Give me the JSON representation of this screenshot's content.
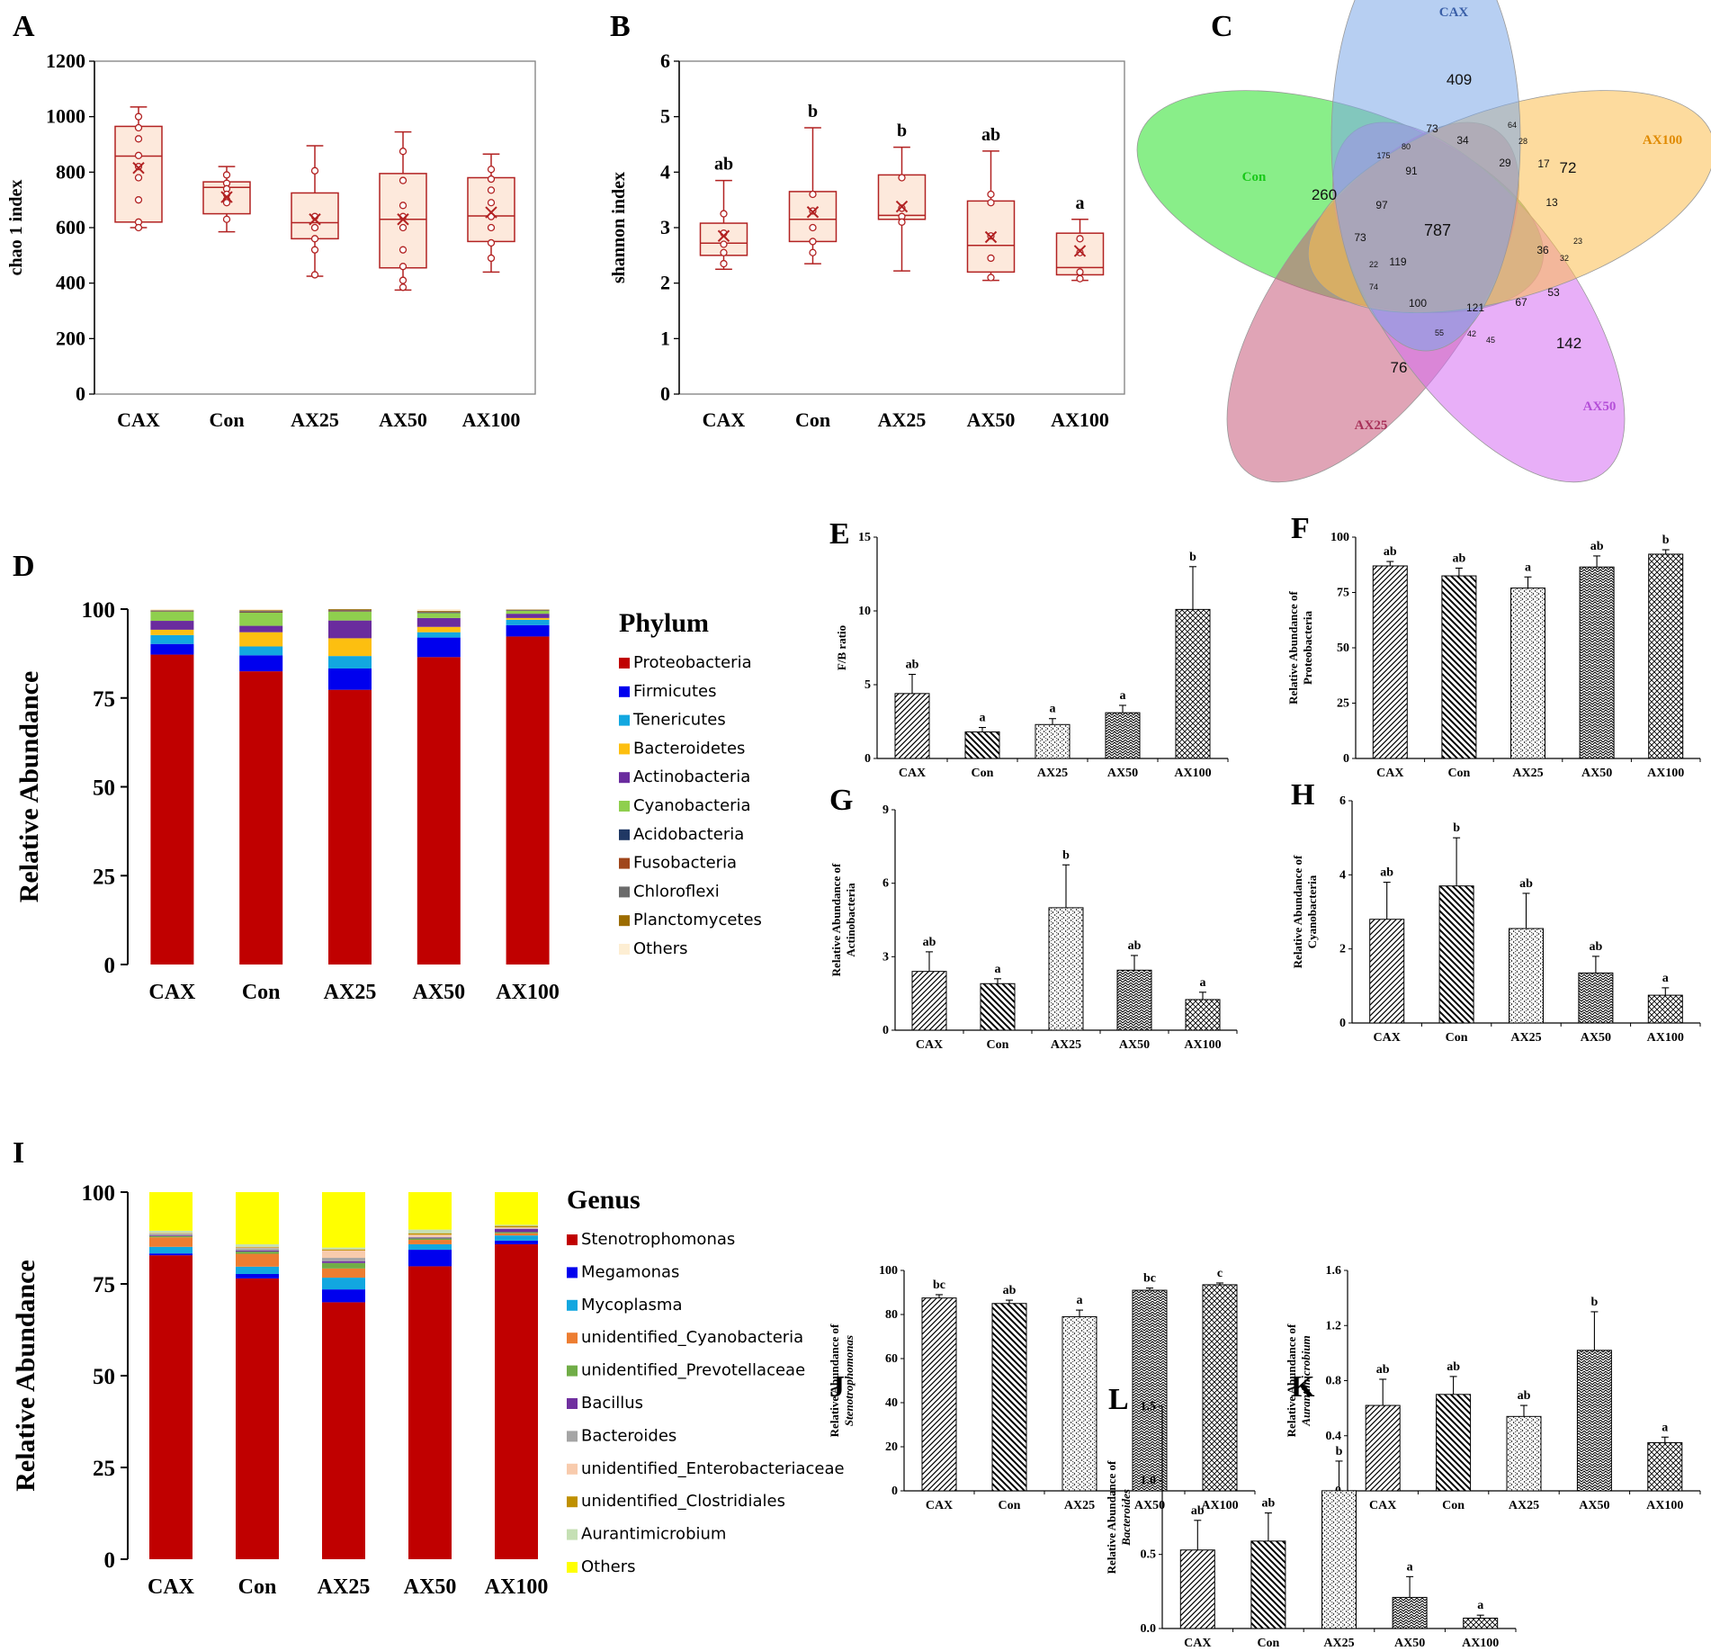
{
  "chart_data": [
    {
      "panel": "A",
      "type": "box",
      "ylabel": "chao 1 index",
      "ylim": [
        0,
        1200
      ],
      "yticks": [
        0,
        200,
        400,
        600,
        800,
        1000,
        1200
      ],
      "categories": [
        "CAX",
        "Con",
        "AX25",
        "AX50",
        "AX100"
      ],
      "boxes": [
        {
          "min": 600,
          "q1": 620,
          "median": 858,
          "q3": 965,
          "max": 1035,
          "mean": 815,
          "points": [
            1000,
            960,
            920,
            860,
            820,
            780,
            700,
            620,
            600
          ]
        },
        {
          "min": 585,
          "q1": 650,
          "median": 745,
          "q3": 765,
          "max": 820,
          "mean": 710,
          "points": [
            790,
            760,
            740,
            720,
            700,
            690,
            630
          ]
        },
        {
          "min": 425,
          "q1": 560,
          "median": 618,
          "q3": 725,
          "max": 895,
          "mean": 630,
          "points": [
            805,
            640,
            600,
            560,
            520,
            430
          ]
        },
        {
          "min": 375,
          "q1": 455,
          "median": 630,
          "q3": 795,
          "max": 945,
          "mean": 630,
          "points": [
            875,
            770,
            680,
            640,
            600,
            520,
            460,
            410,
            385
          ]
        },
        {
          "min": 440,
          "q1": 550,
          "median": 642,
          "q3": 780,
          "max": 865,
          "mean": 655,
          "points": [
            810,
            775,
            735,
            690,
            640,
            600,
            545,
            490
          ]
        }
      ]
    },
    {
      "panel": "B",
      "type": "box",
      "ylabel": "shannon index",
      "ylim": [
        0,
        6
      ],
      "yticks": [
        0,
        1,
        2,
        3,
        4,
        5,
        6
      ],
      "categories": [
        "CAX",
        "Con",
        "AX25",
        "AX50",
        "AX100"
      ],
      "letters": [
        "ab",
        "b",
        "b",
        "ab",
        "a"
      ],
      "boxes": [
        {
          "min": 2.25,
          "q1": 2.5,
          "median": 2.72,
          "q3": 3.08,
          "max": 3.85,
          "mean": 2.85,
          "points": [
            3.25,
            2.9,
            2.7,
            2.55,
            2.35
          ]
        },
        {
          "min": 2.35,
          "q1": 2.75,
          "median": 3.15,
          "q3": 3.65,
          "max": 4.8,
          "mean": 3.28,
          "points": [
            3.6,
            3.3,
            3.0,
            2.75,
            2.55
          ]
        },
        {
          "min": 2.22,
          "q1": 3.15,
          "median": 3.22,
          "q3": 3.95,
          "max": 4.45,
          "mean": 3.38,
          "points": [
            3.9,
            3.35,
            3.2,
            3.1
          ]
        },
        {
          "min": 2.05,
          "q1": 2.2,
          "median": 2.68,
          "q3": 3.48,
          "max": 4.38,
          "mean": 2.83,
          "points": [
            3.6,
            3.45,
            2.85,
            2.45,
            2.1
          ]
        },
        {
          "min": 2.05,
          "q1": 2.15,
          "median": 2.28,
          "q3": 2.9,
          "max": 3.15,
          "mean": 2.58,
          "points": [
            2.8,
            2.55,
            2.2,
            2.08
          ]
        }
      ]
    },
    {
      "panel": "C",
      "type": "venn",
      "sets": [
        "CAX",
        "AX100",
        "AX50",
        "AX25",
        "Con"
      ],
      "counts": {
        "CAX_only": "409",
        "AX100_only": "72",
        "AX50_only": "142",
        "AX25_only": "76",
        "Con_only": "260",
        "core": "787",
        "r1": "73",
        "r2": "64",
        "r3": "34",
        "r4": "29",
        "r5": "17",
        "r6": "28",
        "r7": "80",
        "r8": "175",
        "r9": "91",
        "r10": "13",
        "r11": "97",
        "r12": "73",
        "r13": "36",
        "r14": "23",
        "r15": "32",
        "r16": "22",
        "r17": "119",
        "r18": "74",
        "r19": "100",
        "r20": "121",
        "r21": "67",
        "r22": "53",
        "r23": "55",
        "r24": "42",
        "r25": "45"
      }
    },
    {
      "panel": "D",
      "type": "stacked-bar",
      "ylabel": "Relative Abundance",
      "ylim": [
        0,
        100
      ],
      "yticks": [
        0,
        25,
        50,
        75,
        100
      ],
      "categories": [
        "CAX",
        "Con",
        "AX25",
        "AX50",
        "AX100"
      ],
      "legend_title": "Phylum",
      "series": [
        {
          "name": "Proteobacteria",
          "color": "#c00000",
          "values": [
            87.2,
            82.5,
            77.3,
            86.5,
            92.3
          ]
        },
        {
          "name": "Firmicutes",
          "color": "#0000ee",
          "values": [
            3.0,
            4.5,
            6.0,
            5.5,
            3.2
          ]
        },
        {
          "name": "Tenericutes",
          "color": "#12a7e0",
          "values": [
            2.5,
            2.5,
            3.5,
            1.5,
            1.5
          ]
        },
        {
          "name": "Bacteroidetes",
          "color": "#fdbf10",
          "values": [
            1.5,
            4.0,
            5.0,
            1.5,
            0.5
          ]
        },
        {
          "name": "Actinobacteria",
          "color": "#6a2c9e",
          "values": [
            2.5,
            1.8,
            5.0,
            2.5,
            1.2
          ]
        },
        {
          "name": "Cyanobacteria",
          "color": "#8fcf4e",
          "values": [
            2.6,
            3.7,
            2.5,
            1.4,
            0.8
          ]
        },
        {
          "name": "Acidobacteria",
          "color": "#203864",
          "values": [
            0.1,
            0.1,
            0.1,
            0.1,
            0.1
          ]
        },
        {
          "name": "Fusobacteria",
          "color": "#a0461b",
          "values": [
            0.1,
            0.2,
            0.2,
            0.1,
            0.1
          ]
        },
        {
          "name": "Chloroflexi",
          "color": "#6b6b6b",
          "values": [
            0.1,
            0.2,
            0.2,
            0.2,
            0.1
          ]
        },
        {
          "name": "Planctomycetes",
          "color": "#9c6c00",
          "values": [
            0.1,
            0.2,
            0.2,
            0.2,
            0.1
          ]
        },
        {
          "name": "Others",
          "color": "#fdeed3",
          "values": [
            0.3,
            0.3,
            0.0,
            0.5,
            0.1
          ]
        }
      ]
    },
    {
      "panel": "E",
      "type": "bar",
      "ylabel": "F/B ratio",
      "ylim": [
        0,
        15
      ],
      "yticks": [
        0,
        5,
        10,
        15
      ],
      "categories": [
        "CAX",
        "Con",
        "AX25",
        "AX50",
        "AX100"
      ],
      "values": [
        4.4,
        1.8,
        2.3,
        3.1,
        10.1
      ],
      "errors": [
        1.3,
        0.3,
        0.4,
        0.5,
        2.9
      ],
      "letters": [
        "ab",
        "a",
        "a",
        "a",
        "b"
      ]
    },
    {
      "panel": "F",
      "type": "bar",
      "ylabel": [
        "Relative Abundance of",
        "Proteobacteria"
      ],
      "ylim": [
        0,
        100
      ],
      "yticks": [
        0,
        25,
        50,
        75,
        100
      ],
      "categories": [
        "CAX",
        "Con",
        "AX25",
        "AX50",
        "AX100"
      ],
      "values": [
        87,
        82.5,
        77,
        86.5,
        92.3
      ],
      "errors": [
        2,
        3.5,
        5,
        5,
        2
      ],
      "letters": [
        "ab",
        "ab",
        "a",
        "ab",
        "b"
      ]
    },
    {
      "panel": "G",
      "type": "bar",
      "ylabel": [
        "Relative Abundance of",
        "Actinobacteria"
      ],
      "ylim": [
        0,
        9
      ],
      "yticks": [
        0,
        3,
        6,
        9
      ],
      "categories": [
        "CAX",
        "Con",
        "AX25",
        "AX50",
        "AX100"
      ],
      "values": [
        2.4,
        1.9,
        5.0,
        2.45,
        1.25
      ],
      "errors": [
        0.8,
        0.2,
        1.75,
        0.6,
        0.3
      ],
      "letters": [
        "ab",
        "a",
        "b",
        "ab",
        "a"
      ]
    },
    {
      "panel": "H",
      "type": "bar",
      "ylabel": [
        "Relative Abundance of",
        "Cyanobacteria"
      ],
      "ylim": [
        0,
        6
      ],
      "yticks": [
        0,
        2,
        4,
        6
      ],
      "categories": [
        "CAX",
        "Con",
        "AX25",
        "AX50",
        "AX100"
      ],
      "values": [
        2.8,
        3.7,
        2.55,
        1.35,
        0.75
      ],
      "errors": [
        1.0,
        1.3,
        0.95,
        0.45,
        0.2
      ],
      "letters": [
        "ab",
        "b",
        "ab",
        "ab",
        "a"
      ]
    },
    {
      "panel": "J",
      "type": "bar",
      "ylabel": [
        "Relative Abundance of",
        "Stenotrophomonas"
      ],
      "ylim": [
        0,
        100
      ],
      "yticks": [
        0,
        20,
        40,
        60,
        80,
        100
      ],
      "categories": [
        "CAX",
        "Con",
        "AX25",
        "AX50",
        "AX100"
      ],
      "values": [
        87.5,
        85,
        79,
        91,
        93.5
      ],
      "errors": [
        1.5,
        1.5,
        3,
        1,
        0.8
      ],
      "letters": [
        "bc",
        "ab",
        "a",
        "bc",
        "c"
      ]
    },
    {
      "panel": "K",
      "type": "bar",
      "ylabel": [
        "Relative Abundance of",
        "Aurantimicrobium"
      ],
      "ylim": [
        0,
        1.6
      ],
      "yticks": [
        "0",
        "0.4",
        "0.8",
        "1.2",
        "1.6"
      ],
      "categories": [
        "CAX",
        "Con",
        "AX25",
        "AX50",
        "AX100"
      ],
      "values": [
        0.62,
        0.7,
        0.54,
        1.02,
        0.35
      ],
      "errors": [
        0.19,
        0.13,
        0.08,
        0.28,
        0.04
      ],
      "letters": [
        "ab",
        "ab",
        "ab",
        "b",
        "a"
      ]
    },
    {
      "panel": "I",
      "type": "stacked-bar",
      "ylabel": "Relative Abundance",
      "ylim": [
        0,
        100
      ],
      "yticks": [
        0,
        25,
        50,
        75,
        100
      ],
      "categories": [
        "CAX",
        "Con",
        "AX25",
        "AX50",
        "AX100"
      ],
      "legend_title": "Genus",
      "series": [
        {
          "name": "Stenotrophomonas",
          "color": "#c00000",
          "values": [
            82.8,
            76.5,
            70,
            79.8,
            85.8
          ]
        },
        {
          "name": "Megamonas",
          "color": "#0000ee",
          "values": [
            0.5,
            1.2,
            3.5,
            4.5,
            1.0
          ]
        },
        {
          "name": "Mycoplasma",
          "color": "#12a7e0",
          "values": [
            1.8,
            2.0,
            3.2,
            1.5,
            1.4
          ]
        },
        {
          "name": "unidentified_Cyanobacteria",
          "color": "#ed7d31",
          "values": [
            2.6,
            3.5,
            2.5,
            1.2,
            0.6
          ]
        },
        {
          "name": "unidentified_Prevotellaceae",
          "color": "#70ad47",
          "values": [
            0.3,
            0.6,
            1.5,
            0.4,
            0.3
          ]
        },
        {
          "name": "Bacillus",
          "color": "#7030a0",
          "values": [
            0.2,
            0.3,
            0.5,
            0.2,
            0.9
          ]
        },
        {
          "name": "Bacteroides",
          "color": "#a5a5a5",
          "values": [
            0.5,
            0.6,
            0.9,
            0.2,
            0.1
          ]
        },
        {
          "name": "unidentified_Enterobacteriaceae",
          "color": "#f8cbad",
          "values": [
            0.1,
            0.2,
            2.0,
            0.6,
            0.3
          ]
        },
        {
          "name": "unidentified_Clostridiales",
          "color": "#bf9000",
          "values": [
            0.1,
            0.2,
            0.3,
            0.4,
            0.4
          ]
        },
        {
          "name": "Aurantimicrobium",
          "color": "#c5e0b4",
          "values": [
            0.6,
            0.7,
            0.5,
            1.0,
            0.3
          ]
        },
        {
          "name": "Others",
          "color": "#ffff00",
          "values": [
            10.5,
            14.2,
            15.1,
            10.2,
            8.9
          ]
        }
      ]
    },
    {
      "panel": "L",
      "type": "bar",
      "ylabel": [
        "Relative Abundance of",
        "Bacteroides"
      ],
      "ylim": [
        0,
        1.5
      ],
      "yticks": [
        "0.0",
        "0.5",
        "1.0",
        "1.5"
      ],
      "categories": [
        "CAX",
        "Con",
        "AX25",
        "AX50",
        "AX100"
      ],
      "values": [
        0.53,
        0.59,
        0.93,
        0.21,
        0.07
      ],
      "errors": [
        0.2,
        0.19,
        0.2,
        0.14,
        0.02
      ],
      "letters": [
        "ab",
        "ab",
        "b",
        "a",
        "a"
      ]
    }
  ]
}
